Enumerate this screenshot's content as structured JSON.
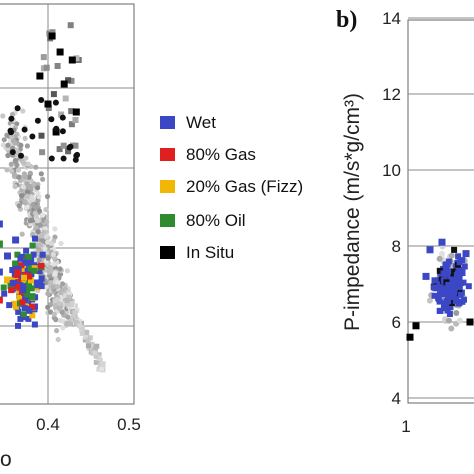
{
  "chart_data": [
    {
      "panel": "a",
      "type": "scatter",
      "xlabel_partial": "o",
      "xlim": [
        0.0,
        0.5
      ],
      "ylim": [
        0,
        1
      ],
      "x_ticks": [
        "0.4",
        "0.5"
      ],
      "grid": true,
      "legend_position": "right",
      "series": [
        {
          "name": "Wet",
          "color": "#3b47c4",
          "points": [
            [
              0.27,
              0.36
            ],
            [
              0.29,
              0.4
            ],
            [
              0.31,
              0.34
            ],
            [
              0.33,
              0.38
            ],
            [
              0.3,
              0.3
            ],
            [
              0.28,
              0.44
            ],
            [
              0.32,
              0.42
            ],
            [
              0.34,
              0.33
            ],
            [
              0.26,
              0.31
            ],
            [
              0.3,
              0.47
            ],
            [
              0.35,
              0.37
            ],
            [
              0.29,
              0.26
            ],
            [
              0.31,
              0.5
            ],
            [
              0.27,
              0.42
            ],
            [
              0.33,
              0.29
            ],
            [
              0.36,
              0.41
            ],
            [
              0.28,
              0.35
            ],
            [
              0.32,
              0.27
            ],
            [
              0.34,
              0.45
            ],
            [
              0.3,
              0.38
            ]
          ]
        },
        {
          "name": "80% Gas",
          "color": "#e02020",
          "points": [
            [
              0.3,
              0.24
            ],
            [
              0.32,
              0.25
            ],
            [
              0.29,
              0.23
            ],
            [
              0.34,
              0.26
            ],
            [
              0.27,
              0.27
            ]
          ]
        },
        {
          "name": "20% Gas (Fizz)",
          "color": "#f2b705",
          "points": [
            [
              0.28,
              0.4
            ],
            [
              0.33,
              0.44
            ],
            [
              0.35,
              0.31
            ],
            [
              0.26,
              0.37
            ],
            [
              0.31,
              0.46
            ]
          ]
        },
        {
          "name": "80% Oil",
          "color": "#2e8b2e",
          "points": [
            [
              0.27,
              0.33
            ],
            [
              0.34,
              0.4
            ],
            [
              0.29,
              0.48
            ],
            [
              0.32,
              0.31
            ],
            [
              0.36,
              0.35
            ]
          ]
        },
        {
          "name": "In Situ",
          "color": "#000000",
          "points": [
            [
              0.405,
              0.92
            ],
            [
              0.415,
              0.88
            ],
            [
              0.435,
              0.73
            ],
            [
              0.42,
              0.8
            ],
            [
              0.41,
              0.68
            ],
            [
              0.4,
              0.75
            ],
            [
              0.39,
              0.82
            ],
            [
              0.43,
              0.86
            ]
          ]
        }
      ]
    },
    {
      "panel": "b",
      "panel_label": "b)",
      "type": "scatter",
      "ylabel": "P-impedance (m/s*g/cm³)",
      "ylim": [
        4,
        14
      ],
      "y_ticks": [
        "4",
        "6",
        "8",
        "10",
        "12",
        "14"
      ],
      "x_ticks": [
        "1"
      ],
      "grid": true,
      "series": [
        {
          "name": "Wet",
          "color": "#3b47c4",
          "points": [
            [
              1.1,
              7.2
            ],
            [
              1.15,
              6.9
            ],
            [
              1.2,
              7.5
            ],
            [
              1.25,
              6.6
            ],
            [
              1.3,
              7.8
            ],
            [
              1.12,
              7.9
            ],
            [
              1.22,
              6.4
            ],
            [
              1.35,
              7.1
            ],
            [
              1.18,
              8.1
            ],
            [
              1.28,
              7.3
            ]
          ]
        },
        {
          "name": "In Situ",
          "color": "#000000",
          "points": [
            [
              1.02,
              5.6
            ],
            [
              1.05,
              5.9
            ],
            [
              1.32,
              6.0
            ],
            [
              1.38,
              8.4
            ]
          ]
        }
      ]
    }
  ]
}
